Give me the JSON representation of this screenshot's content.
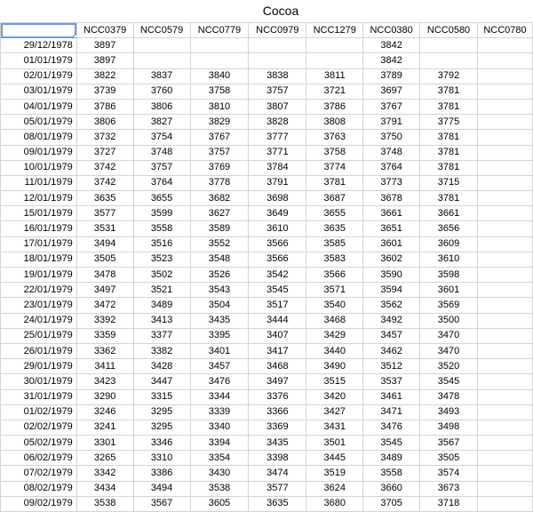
{
  "sheet": {
    "title": "Cocoa",
    "headers": [
      "",
      "NCC0379",
      "NCC0579",
      "NCC0779",
      "NCC0979",
      "NCC1279",
      "NCC0380",
      "NCC0580",
      "NCC0780"
    ],
    "rows": [
      [
        "29/12/1978",
        "3897",
        "",
        "",
        "",
        "",
        "3842",
        "",
        ""
      ],
      [
        "01/01/1979",
        "3897",
        "",
        "",
        "",
        "",
        "3842",
        "",
        ""
      ],
      [
        "02/01/1979",
        "3822",
        "3837",
        "3840",
        "3838",
        "3811",
        "3789",
        "3792",
        ""
      ],
      [
        "03/01/1979",
        "3739",
        "3760",
        "3758",
        "3757",
        "3721",
        "3697",
        "3781",
        ""
      ],
      [
        "04/01/1979",
        "3786",
        "3806",
        "3810",
        "3807",
        "3786",
        "3767",
        "3781",
        ""
      ],
      [
        "05/01/1979",
        "3806",
        "3827",
        "3829",
        "3828",
        "3808",
        "3791",
        "3775",
        ""
      ],
      [
        "08/01/1979",
        "3732",
        "3754",
        "3767",
        "3777",
        "3763",
        "3750",
        "3781",
        ""
      ],
      [
        "09/01/1979",
        "3727",
        "3748",
        "3757",
        "3771",
        "3758",
        "3748",
        "3781",
        ""
      ],
      [
        "10/01/1979",
        "3742",
        "3757",
        "3769",
        "3784",
        "3774",
        "3764",
        "3781",
        ""
      ],
      [
        "11/01/1979",
        "3742",
        "3764",
        "3778",
        "3791",
        "3781",
        "3773",
        "3715",
        ""
      ],
      [
        "12/01/1979",
        "3635",
        "3655",
        "3682",
        "3698",
        "3687",
        "3678",
        "3781",
        ""
      ],
      [
        "15/01/1979",
        "3577",
        "3599",
        "3627",
        "3649",
        "3655",
        "3661",
        "3661",
        ""
      ],
      [
        "16/01/1979",
        "3531",
        "3558",
        "3589",
        "3610",
        "3635",
        "3651",
        "3656",
        ""
      ],
      [
        "17/01/1979",
        "3494",
        "3516",
        "3552",
        "3566",
        "3585",
        "3601",
        "3609",
        ""
      ],
      [
        "18/01/1979",
        "3505",
        "3523",
        "3548",
        "3566",
        "3583",
        "3602",
        "3610",
        ""
      ],
      [
        "19/01/1979",
        "3478",
        "3502",
        "3526",
        "3542",
        "3566",
        "3590",
        "3598",
        ""
      ],
      [
        "22/01/1979",
        "3497",
        "3521",
        "3543",
        "3545",
        "3571",
        "3594",
        "3601",
        ""
      ],
      [
        "23/01/1979",
        "3472",
        "3489",
        "3504",
        "3517",
        "3540",
        "3562",
        "3569",
        ""
      ],
      [
        "24/01/1979",
        "3392",
        "3413",
        "3435",
        "3444",
        "3468",
        "3492",
        "3500",
        ""
      ],
      [
        "25/01/1979",
        "3359",
        "3377",
        "3395",
        "3407",
        "3429",
        "3457",
        "3470",
        ""
      ],
      [
        "26/01/1979",
        "3362",
        "3382",
        "3401",
        "3417",
        "3440",
        "3462",
        "3470",
        ""
      ],
      [
        "29/01/1979",
        "3411",
        "3428",
        "3457",
        "3468",
        "3490",
        "3512",
        "3520",
        ""
      ],
      [
        "30/01/1979",
        "3423",
        "3447",
        "3476",
        "3497",
        "3515",
        "3537",
        "3545",
        ""
      ],
      [
        "31/01/1979",
        "3290",
        "3315",
        "3344",
        "3376",
        "3420",
        "3461",
        "3478",
        ""
      ],
      [
        "01/02/1979",
        "3246",
        "3295",
        "3339",
        "3366",
        "3427",
        "3471",
        "3493",
        ""
      ],
      [
        "02/02/1979",
        "3241",
        "3295",
        "3340",
        "3369",
        "3431",
        "3476",
        "3498",
        ""
      ],
      [
        "05/02/1979",
        "3301",
        "3346",
        "3394",
        "3435",
        "3501",
        "3545",
        "3567",
        ""
      ],
      [
        "06/02/1979",
        "3265",
        "3310",
        "3354",
        "3398",
        "3445",
        "3489",
        "3505",
        ""
      ],
      [
        "07/02/1979",
        "3342",
        "3386",
        "3430",
        "3474",
        "3519",
        "3558",
        "3574",
        ""
      ],
      [
        "08/02/1979",
        "3434",
        "3494",
        "3538",
        "3577",
        "3624",
        "3660",
        "3673",
        ""
      ],
      [
        "09/02/1979",
        "3538",
        "3567",
        "3605",
        "3635",
        "3680",
        "3705",
        "3718",
        ""
      ]
    ]
  }
}
